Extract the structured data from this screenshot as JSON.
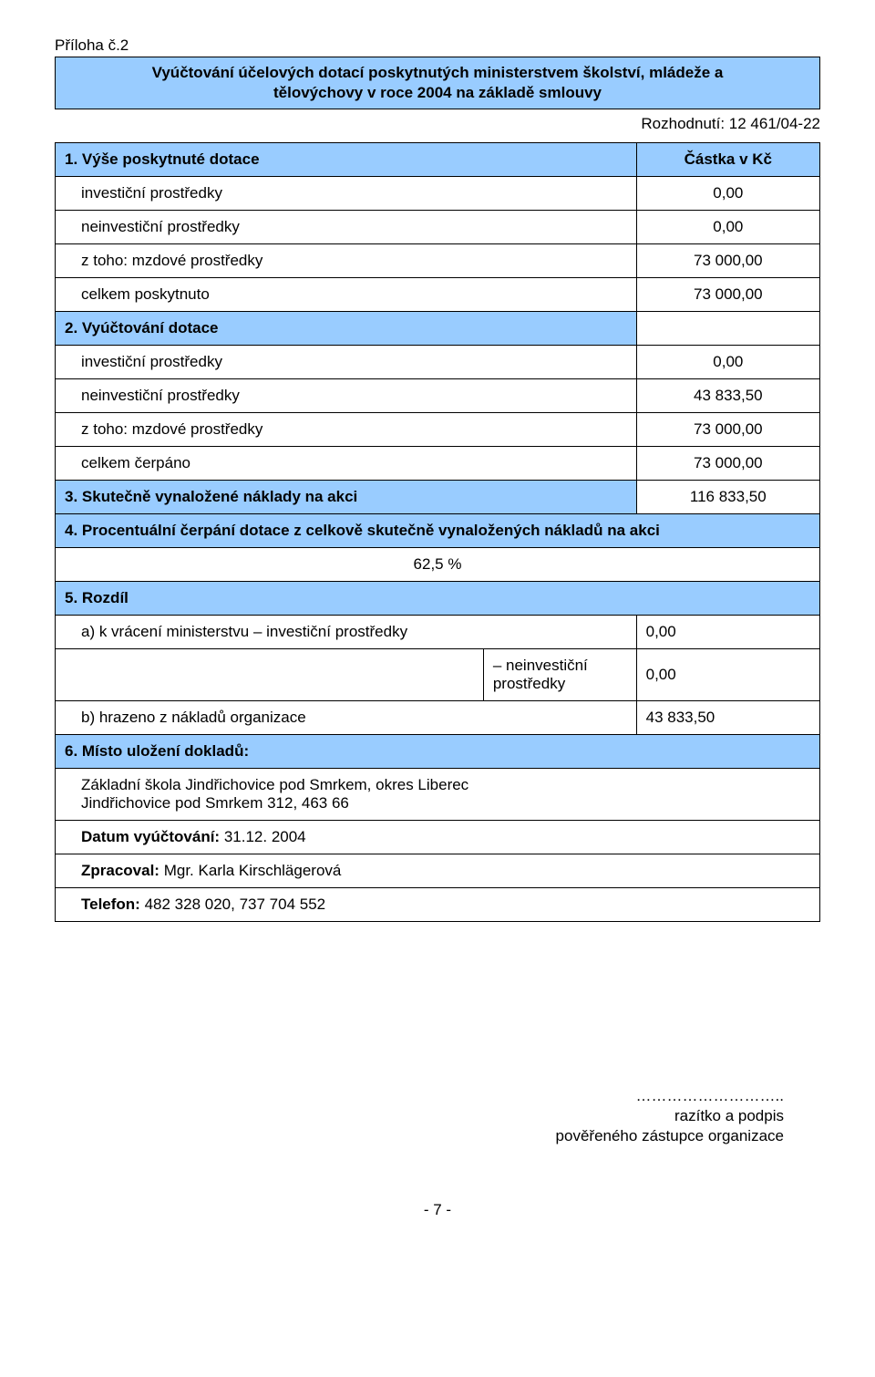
{
  "attachment_label": "Příloha č.2",
  "title_line1": "Vyúčtování účelových dotací poskytnutých ministerstvem školství, mládeže a",
  "title_line2": "tělovýchovy v roce 2004 na základě smlouvy",
  "decision": "Rozhodnutí:  12 461/04-22",
  "colors": {
    "header_bg": "#99ccff",
    "border": "#000000",
    "text": "#000000",
    "page_bg": "#ffffff"
  },
  "section1": {
    "heading": "1.  Výše poskytnuté dotace",
    "heading_value": "Částka v Kč",
    "rows": [
      {
        "label": "investiční prostředky",
        "value": "0,00"
      },
      {
        "label": "neinvestiční prostředky",
        "value": "0,00"
      },
      {
        "label": "z toho: mzdové prostředky",
        "value": "73 000,00"
      },
      {
        "label": "celkem poskytnuto",
        "value": "73 000,00"
      }
    ]
  },
  "section2": {
    "heading": "2.  Vyúčtování dotace",
    "rows": [
      {
        "label": "investiční prostředky",
        "value": "0,00"
      },
      {
        "label": "neinvestiční prostředky",
        "value": "43 833,50"
      },
      {
        "label": "z toho: mzdové prostředky",
        "value": "73 000,00"
      },
      {
        "label": "celkem čerpáno",
        "value": "73 000,00"
      }
    ]
  },
  "section3": {
    "heading": "3.  Skutečně vynaložené náklady na akci",
    "value": "116  833,50"
  },
  "section4": {
    "heading": "4.  Procentuální čerpání dotace z celkově skutečně vynaložených nákladů na akci",
    "percent": "62,5 %"
  },
  "section5": {
    "heading": "5.  Rozdíl",
    "rows": [
      {
        "label": "a) k vrácení ministerstvu – investiční prostředky",
        "value": "0,00"
      },
      {
        "label": "– neinvestiční prostředky",
        "value": "0,00"
      },
      {
        "label": "b) hrazeno z nákladů organizace",
        "value": "43 833,50"
      }
    ]
  },
  "section6": {
    "heading": "6.  Místo uložení dokladů:",
    "address_line1": "Základní škola Jindřichovice pod Smrkem, okres Liberec",
    "address_line2": "Jindřichovice pod Smrkem 312, 463 66",
    "date_label": "Datum vyúčtování:",
    "date_value": "31.12. 2004",
    "processed_label": "Zpracoval:",
    "processed_value": "Mgr. Karla Kirschlägerová",
    "phone_label": "Telefon:",
    "phone_value": "482 328 020, 737 704 552"
  },
  "footer": {
    "dots": "………………………..",
    "line1": "razítko a podpis",
    "line2": "pověřeného zástupce organizace"
  },
  "page_number": "- 7 -"
}
